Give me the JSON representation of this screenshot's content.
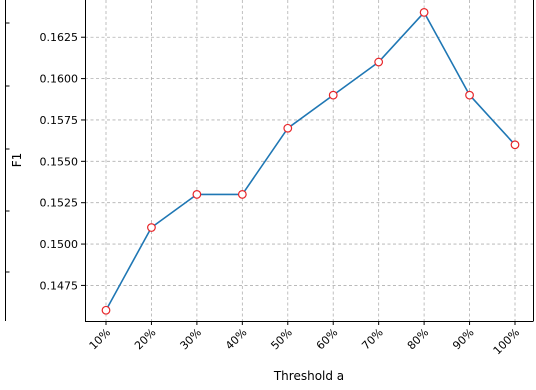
{
  "chart_data": {
    "type": "line",
    "title": "",
    "xlabel": "Threshold a",
    "ylabel": "F1",
    "categories": [
      "10%",
      "20%",
      "30%",
      "40%",
      "50%",
      "60%",
      "70%",
      "80%",
      "90%",
      "100%"
    ],
    "series": [
      {
        "values": [
          0.146,
          0.151,
          0.153,
          0.153,
          0.157,
          0.159,
          0.161,
          0.164,
          0.159,
          0.156
        ],
        "line_color": "#1f77b4",
        "marker": "circle",
        "marker_edge_color": "#e8262a",
        "marker_face_color": "#ffffff"
      }
    ],
    "yticks": [
      0.1475,
      0.15,
      0.1525,
      0.155,
      0.1575,
      0.16,
      0.1625
    ],
    "ytick_labels": [
      "0.1475",
      "0.1500",
      "0.1525",
      "0.1550",
      "0.1575",
      "0.1600",
      "0.1625"
    ],
    "ylim": [
      0.14535,
      0.16475
    ],
    "grid": true,
    "grid_style": "dashed",
    "grid_color": "#b0b0b0"
  }
}
